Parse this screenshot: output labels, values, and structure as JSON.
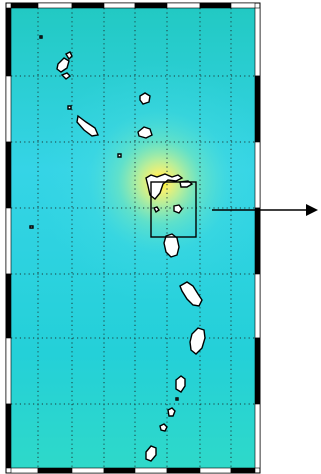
{
  "figure": {
    "panel": "map",
    "projection_frame": "alternating-black-white-border",
    "gridlines": "dotted",
    "inset_box": "zoom-region",
    "pointer": "arrow-right"
  },
  "colors": {
    "sea_low": "#1fc8b8",
    "sea_mid": "#36d2e6",
    "sea_high": "#7de6a0",
    "hotspot": "#ffe400",
    "land": "#ffffff",
    "outline": "#000000"
  },
  "islands": [
    "island-northwest-a",
    "island-northwest-b",
    "island-northwest-c",
    "island-northwest-d",
    "island-northwest-e",
    "island-north-center-a",
    "island-north-center-b",
    "island-hotspot-main",
    "island-hotspot-east",
    "island-inset-small",
    "island-south-of-inset",
    "island-mid-a",
    "island-mid-b",
    "island-mid-c",
    "island-south-a",
    "island-south-b",
    "island-south-c",
    "island-south-d"
  ]
}
